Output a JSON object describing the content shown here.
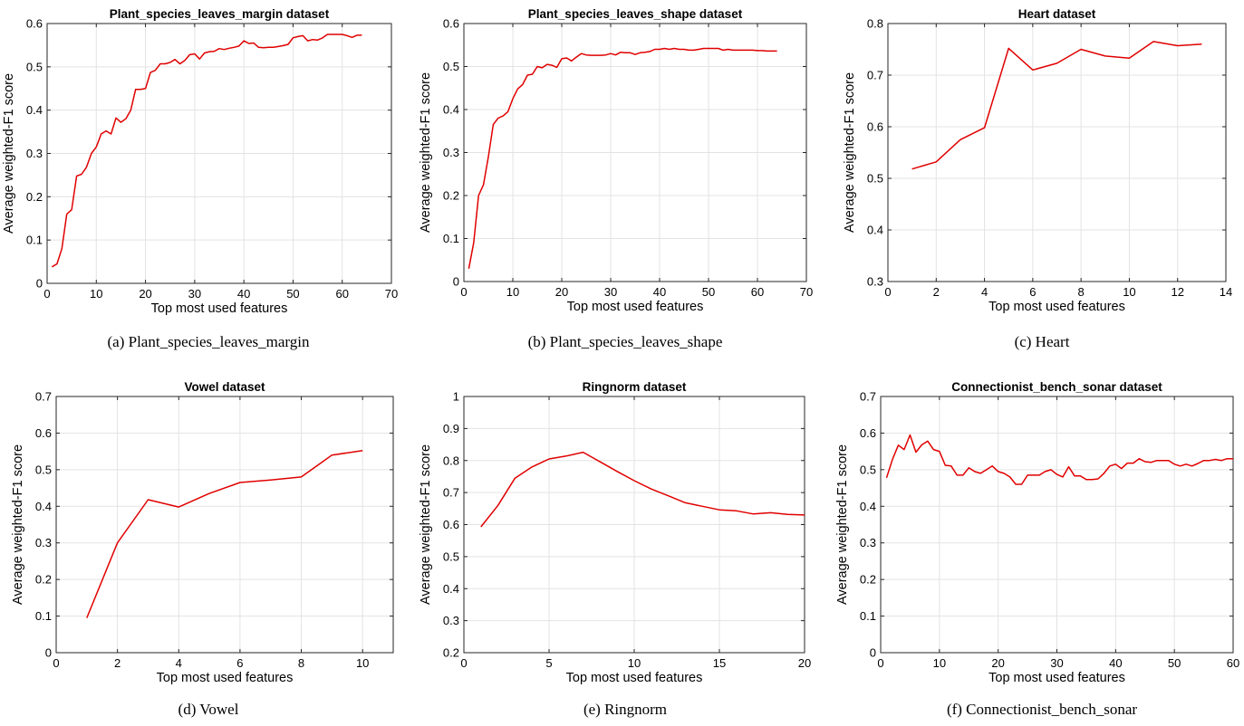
{
  "chart_data": [
    {
      "type": "line",
      "title": "Plant_species_leaves_margin dataset",
      "xlabel": "Top most used features",
      "ylabel": "Average weighted-F1 score",
      "caption": "(a) Plant_species_leaves_margin",
      "xlim": [
        0,
        70
      ],
      "ylim": [
        0,
        0.6
      ],
      "xticks": [
        0,
        10,
        20,
        30,
        40,
        50,
        60,
        70
      ],
      "yticks": [
        0,
        0.1,
        0.2,
        0.3,
        0.4,
        0.5,
        0.6
      ],
      "grid": true,
      "color": "#e00000",
      "x": [
        1,
        2,
        3,
        4,
        5,
        6,
        7,
        8,
        9,
        10,
        11,
        12,
        13,
        14,
        15,
        16,
        17,
        18,
        19,
        20,
        21,
        22,
        23,
        24,
        25,
        26,
        27,
        28,
        29,
        30,
        31,
        32,
        33,
        34,
        35,
        36,
        37,
        38,
        39,
        40,
        41,
        42,
        43,
        44,
        45,
        46,
        47,
        48,
        49,
        50,
        51,
        52,
        53,
        54,
        55,
        56,
        57,
        58,
        59,
        60,
        61,
        62,
        63,
        64
      ],
      "y": [
        0.038,
        0.045,
        0.08,
        0.16,
        0.17,
        0.248,
        0.252,
        0.268,
        0.3,
        0.315,
        0.345,
        0.352,
        0.345,
        0.382,
        0.372,
        0.38,
        0.4,
        0.448,
        0.448,
        0.45,
        0.487,
        0.492,
        0.507,
        0.507,
        0.51,
        0.517,
        0.507,
        0.515,
        0.528,
        0.53,
        0.518,
        0.532,
        0.535,
        0.536,
        0.542,
        0.54,
        0.543,
        0.545,
        0.548,
        0.56,
        0.554,
        0.555,
        0.545,
        0.544,
        0.545,
        0.545,
        0.547,
        0.549,
        0.552,
        0.567,
        0.57,
        0.572,
        0.56,
        0.563,
        0.562,
        0.567,
        0.575,
        0.575,
        0.575,
        0.575,
        0.572,
        0.568,
        0.573,
        0.573
      ]
    },
    {
      "type": "line",
      "title": "Plant_species_leaves_shape dataset",
      "xlabel": "Top most used features",
      "ylabel": "Average weighted-F1 score",
      "caption": "(b) Plant_species_leaves_shape",
      "xlim": [
        0,
        70
      ],
      "ylim": [
        0,
        0.6
      ],
      "xticks": [
        0,
        10,
        20,
        30,
        40,
        50,
        60,
        70
      ],
      "yticks": [
        0,
        0.1,
        0.2,
        0.3,
        0.4,
        0.5,
        0.6
      ],
      "grid": true,
      "color": "#e00000",
      "x": [
        1,
        2,
        3,
        4,
        5,
        6,
        7,
        8,
        9,
        10,
        11,
        12,
        13,
        14,
        15,
        16,
        17,
        18,
        19,
        20,
        21,
        22,
        23,
        24,
        25,
        26,
        27,
        28,
        29,
        30,
        31,
        32,
        33,
        34,
        35,
        36,
        37,
        38,
        39,
        40,
        41,
        42,
        43,
        44,
        45,
        46,
        47,
        48,
        49,
        50,
        51,
        52,
        53,
        54,
        55,
        56,
        57,
        58,
        59,
        60,
        61,
        62,
        63,
        64
      ],
      "y": [
        0.03,
        0.09,
        0.2,
        0.225,
        0.29,
        0.365,
        0.38,
        0.385,
        0.395,
        0.425,
        0.448,
        0.458,
        0.48,
        0.482,
        0.5,
        0.497,
        0.505,
        0.503,
        0.498,
        0.518,
        0.52,
        0.513,
        0.522,
        0.53,
        0.527,
        0.526,
        0.526,
        0.526,
        0.527,
        0.53,
        0.527,
        0.533,
        0.532,
        0.532,
        0.528,
        0.532,
        0.533,
        0.535,
        0.54,
        0.54,
        0.542,
        0.54,
        0.542,
        0.54,
        0.54,
        0.538,
        0.538,
        0.54,
        0.542,
        0.542,
        0.542,
        0.542,
        0.538,
        0.54,
        0.538,
        0.538,
        0.538,
        0.538,
        0.538,
        0.537,
        0.537,
        0.536,
        0.536,
        0.536
      ]
    },
    {
      "type": "line",
      "title": "Heart dataset",
      "xlabel": "Top most used features",
      "ylabel": "Average weighted-F1 score",
      "caption": "(c) Heart",
      "xlim": [
        0,
        14
      ],
      "ylim": [
        0.3,
        0.8
      ],
      "xticks": [
        0,
        2,
        4,
        6,
        8,
        10,
        12,
        14
      ],
      "yticks": [
        0.3,
        0.4,
        0.5,
        0.6,
        0.7,
        0.8
      ],
      "grid": true,
      "color": "#e00000",
      "x": [
        1,
        2,
        3,
        4,
        5,
        6,
        7,
        8,
        9,
        10,
        11,
        12,
        13
      ],
      "y": [
        0.518,
        0.532,
        0.575,
        0.598,
        0.752,
        0.71,
        0.723,
        0.75,
        0.737,
        0.733,
        0.765,
        0.757,
        0.76
      ]
    },
    {
      "type": "line",
      "title": "Vowel dataset",
      "xlabel": "Top most used features",
      "ylabel": "Average weighted-F1 score",
      "caption": "(d) Vowel",
      "xlim": [
        0,
        11
      ],
      "ylim": [
        0,
        0.7
      ],
      "xticks": [
        0,
        2,
        4,
        6,
        8,
        10
      ],
      "yticks": [
        0,
        0.1,
        0.2,
        0.3,
        0.4,
        0.5,
        0.6,
        0.7
      ],
      "grid": true,
      "color": "#e00000",
      "x": [
        1,
        2,
        3,
        4,
        5,
        6,
        7,
        8,
        9,
        10
      ],
      "y": [
        0.095,
        0.3,
        0.418,
        0.398,
        0.435,
        0.465,
        0.472,
        0.48,
        0.54,
        0.552
      ]
    },
    {
      "type": "line",
      "title": "Ringnorm dataset",
      "xlabel": "Top most used features",
      "ylabel": "Average weighted-F1 score",
      "caption": "(e) Ringnorm",
      "xlim": [
        0,
        20
      ],
      "ylim": [
        0.2,
        1
      ],
      "xticks": [
        0,
        5,
        10,
        15,
        20
      ],
      "yticks": [
        0.2,
        0.3,
        0.4,
        0.5,
        0.6,
        0.7,
        0.8,
        0.9,
        1
      ],
      "grid": true,
      "color": "#e00000",
      "x": [
        1,
        2,
        3,
        4,
        5,
        6,
        7,
        8,
        9,
        10,
        11,
        12,
        13,
        14,
        15,
        16,
        17,
        18,
        19,
        20
      ],
      "y": [
        0.593,
        0.66,
        0.745,
        0.78,
        0.805,
        0.814,
        0.826,
        0.796,
        0.766,
        0.737,
        0.711,
        0.69,
        0.668,
        0.657,
        0.646,
        0.643,
        0.633,
        0.637,
        0.632,
        0.63
      ]
    },
    {
      "type": "line",
      "title": "Connectionist_bench_sonar dataset",
      "xlabel": "Top most used features",
      "ylabel": "Average weighted-F1 score",
      "caption": "(f) Connectionist_bench_sonar",
      "xlim": [
        0,
        60
      ],
      "ylim": [
        0,
        0.7
      ],
      "xticks": [
        0,
        10,
        20,
        30,
        40,
        50,
        60
      ],
      "yticks": [
        0,
        0.1,
        0.2,
        0.3,
        0.4,
        0.5,
        0.6,
        0.7
      ],
      "grid": true,
      "color": "#e00000",
      "x": [
        1,
        2,
        3,
        4,
        5,
        6,
        7,
        8,
        9,
        10,
        11,
        12,
        13,
        14,
        15,
        16,
        17,
        18,
        19,
        20,
        21,
        22,
        23,
        24,
        25,
        26,
        27,
        28,
        29,
        30,
        31,
        32,
        33,
        34,
        35,
        36,
        37,
        38,
        39,
        40,
        41,
        42,
        43,
        44,
        45,
        46,
        47,
        48,
        49,
        50,
        51,
        52,
        53,
        54,
        55,
        56,
        57,
        58,
        59,
        60
      ],
      "y": [
        0.478,
        0.528,
        0.567,
        0.555,
        0.595,
        0.548,
        0.568,
        0.578,
        0.555,
        0.55,
        0.512,
        0.51,
        0.485,
        0.485,
        0.505,
        0.495,
        0.49,
        0.5,
        0.51,
        0.495,
        0.49,
        0.48,
        0.46,
        0.46,
        0.485,
        0.485,
        0.485,
        0.495,
        0.5,
        0.487,
        0.48,
        0.508,
        0.483,
        0.483,
        0.473,
        0.473,
        0.475,
        0.49,
        0.51,
        0.515,
        0.503,
        0.518,
        0.518,
        0.53,
        0.522,
        0.52,
        0.525,
        0.525,
        0.525,
        0.515,
        0.51,
        0.515,
        0.51,
        0.517,
        0.525,
        0.525,
        0.528,
        0.525,
        0.53,
        0.53
      ]
    }
  ]
}
